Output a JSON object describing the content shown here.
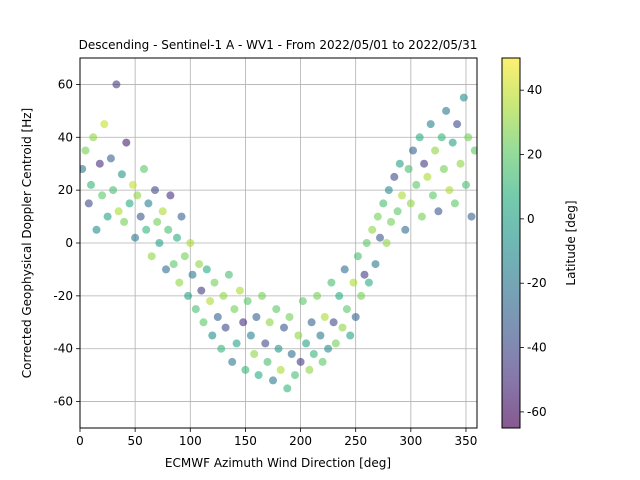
{
  "chart_data": {
    "type": "scatter",
    "title": "Descending - Sentinel-1 A - WV1 - From 2022/05/01 to 2022/05/31",
    "xlabel": "ECMWF Azimuth Wind Direction [deg]",
    "ylabel": "Corrected Geophysical Doppler Centroid [Hz]",
    "xlim": [
      0,
      360
    ],
    "ylim": [
      -70,
      70
    ],
    "xticks": [
      "0",
      "50",
      "100",
      "150",
      "200",
      "250",
      "300",
      "350"
    ],
    "yticks": [
      "-60",
      "-40",
      "-20",
      "0",
      "20",
      "40",
      "60"
    ],
    "grid": true,
    "colorbar": {
      "label": "Latitude [deg]",
      "range": [
        -65,
        50
      ],
      "ticks": [
        "-60",
        "-40",
        "-20",
        "0",
        "20",
        "40"
      ],
      "colormap": "viridis",
      "alpha": 0.6
    },
    "series": [
      {
        "trend_description": "Doppler varies with wind direction like a cosine: about +25 Hz near 0 and 360 deg, minimum about -30 Hz near 190 deg",
        "points": [
          [
            2,
            28,
            -20
          ],
          [
            5,
            35,
            25
          ],
          [
            8,
            15,
            -40
          ],
          [
            10,
            22,
            10
          ],
          [
            12,
            40,
            30
          ],
          [
            15,
            5,
            -10
          ],
          [
            18,
            30,
            -50
          ],
          [
            20,
            18,
            20
          ],
          [
            22,
            45,
            40
          ],
          [
            25,
            10,
            0
          ],
          [
            28,
            32,
            -30
          ],
          [
            30,
            20,
            15
          ],
          [
            33,
            60,
            -45
          ],
          [
            35,
            12,
            35
          ],
          [
            38,
            26,
            -5
          ],
          [
            40,
            8,
            25
          ],
          [
            42,
            38,
            -55
          ],
          [
            45,
            15,
            5
          ],
          [
            48,
            22,
            40
          ],
          [
            50,
            2,
            -20
          ],
          [
            52,
            18,
            30
          ],
          [
            55,
            10,
            -35
          ],
          [
            58,
            28,
            20
          ],
          [
            60,
            5,
            10
          ],
          [
            62,
            15,
            -15
          ],
          [
            65,
            -5,
            30
          ],
          [
            68,
            20,
            -40
          ],
          [
            70,
            8,
            25
          ],
          [
            72,
            0,
            0
          ],
          [
            75,
            12,
            35
          ],
          [
            78,
            -10,
            -25
          ],
          [
            80,
            5,
            15
          ],
          [
            82,
            18,
            -50
          ],
          [
            85,
            -8,
            20
          ],
          [
            88,
            2,
            5
          ],
          [
            90,
            -15,
            30
          ],
          [
            92,
            10,
            -30
          ],
          [
            95,
            -5,
            25
          ],
          [
            98,
            -20,
            0
          ],
          [
            100,
            0,
            35
          ],
          [
            102,
            -12,
            -20
          ],
          [
            105,
            -25,
            15
          ],
          [
            108,
            -8,
            30
          ],
          [
            110,
            -18,
            -45
          ],
          [
            112,
            -30,
            20
          ],
          [
            115,
            -10,
            5
          ],
          [
            118,
            -22,
            35
          ],
          [
            120,
            -35,
            -10
          ],
          [
            122,
            -15,
            25
          ],
          [
            125,
            -28,
            -30
          ],
          [
            128,
            -40,
            10
          ],
          [
            130,
            -20,
            30
          ],
          [
            132,
            -32,
            -40
          ],
          [
            135,
            -12,
            15
          ],
          [
            138,
            -45,
            -20
          ],
          [
            140,
            -25,
            25
          ],
          [
            142,
            -38,
            0
          ],
          [
            145,
            -18,
            35
          ],
          [
            148,
            -30,
            -50
          ],
          [
            150,
            -48,
            10
          ],
          [
            152,
            -22,
            20
          ],
          [
            155,
            -35,
            -15
          ],
          [
            158,
            -42,
            30
          ],
          [
            160,
            -28,
            -30
          ],
          [
            162,
            -50,
            5
          ],
          [
            165,
            -20,
            25
          ],
          [
            168,
            -38,
            -40
          ],
          [
            170,
            -45,
            15
          ],
          [
            172,
            -30,
            30
          ],
          [
            175,
            -52,
            -20
          ],
          [
            178,
            -25,
            20
          ],
          [
            180,
            -40,
            -5
          ],
          [
            182,
            -48,
            35
          ],
          [
            185,
            -32,
            -35
          ],
          [
            188,
            -55,
            10
          ],
          [
            190,
            -28,
            25
          ],
          [
            192,
            -42,
            -25
          ],
          [
            195,
            -50,
            15
          ],
          [
            198,
            -35,
            30
          ],
          [
            200,
            -45,
            -45
          ],
          [
            202,
            -22,
            20
          ],
          [
            205,
            -38,
            0
          ],
          [
            208,
            -48,
            30
          ],
          [
            210,
            -30,
            -30
          ],
          [
            212,
            -42,
            10
          ],
          [
            215,
            -20,
            25
          ],
          [
            218,
            -35,
            -20
          ],
          [
            220,
            -45,
            20
          ],
          [
            222,
            -28,
            35
          ],
          [
            225,
            -40,
            -10
          ],
          [
            228,
            -15,
            15
          ],
          [
            230,
            -30,
            -40
          ],
          [
            232,
            -38,
            25
          ],
          [
            235,
            -20,
            5
          ],
          [
            238,
            -32,
            30
          ],
          [
            240,
            -10,
            -25
          ],
          [
            242,
            -25,
            20
          ],
          [
            245,
            -35,
            0
          ],
          [
            248,
            -15,
            35
          ],
          [
            250,
            -28,
            -30
          ],
          [
            252,
            -5,
            15
          ],
          [
            255,
            -20,
            25
          ],
          [
            258,
            -12,
            -45
          ],
          [
            260,
            0,
            20
          ],
          [
            262,
            -15,
            5
          ],
          [
            265,
            5,
            30
          ],
          [
            268,
            -8,
            -20
          ],
          [
            270,
            10,
            25
          ],
          [
            272,
            2,
            -35
          ],
          [
            275,
            15,
            15
          ],
          [
            278,
            0,
            30
          ],
          [
            280,
            20,
            -10
          ],
          [
            282,
            8,
            25
          ],
          [
            285,
            25,
            -40
          ],
          [
            288,
            12,
            20
          ],
          [
            290,
            30,
            0
          ],
          [
            292,
            18,
            35
          ],
          [
            295,
            5,
            -25
          ],
          [
            298,
            28,
            15
          ],
          [
            300,
            15,
            30
          ],
          [
            302,
            35,
            -30
          ],
          [
            305,
            22,
            20
          ],
          [
            308,
            40,
            5
          ],
          [
            310,
            10,
            25
          ],
          [
            312,
            30,
            -45
          ],
          [
            315,
            25,
            35
          ],
          [
            318,
            45,
            -15
          ],
          [
            320,
            18,
            20
          ],
          [
            322,
            35,
            30
          ],
          [
            325,
            12,
            -35
          ],
          [
            328,
            40,
            10
          ],
          [
            330,
            28,
            25
          ],
          [
            332,
            50,
            -20
          ],
          [
            335,
            20,
            35
          ],
          [
            338,
            38,
            0
          ],
          [
            340,
            15,
            20
          ],
          [
            342,
            45,
            -40
          ],
          [
            345,
            30,
            30
          ],
          [
            348,
            55,
            -10
          ],
          [
            350,
            22,
            15
          ],
          [
            352,
            40,
            25
          ],
          [
            355,
            10,
            -30
          ],
          [
            358,
            35,
            20
          ]
        ]
      }
    ]
  }
}
